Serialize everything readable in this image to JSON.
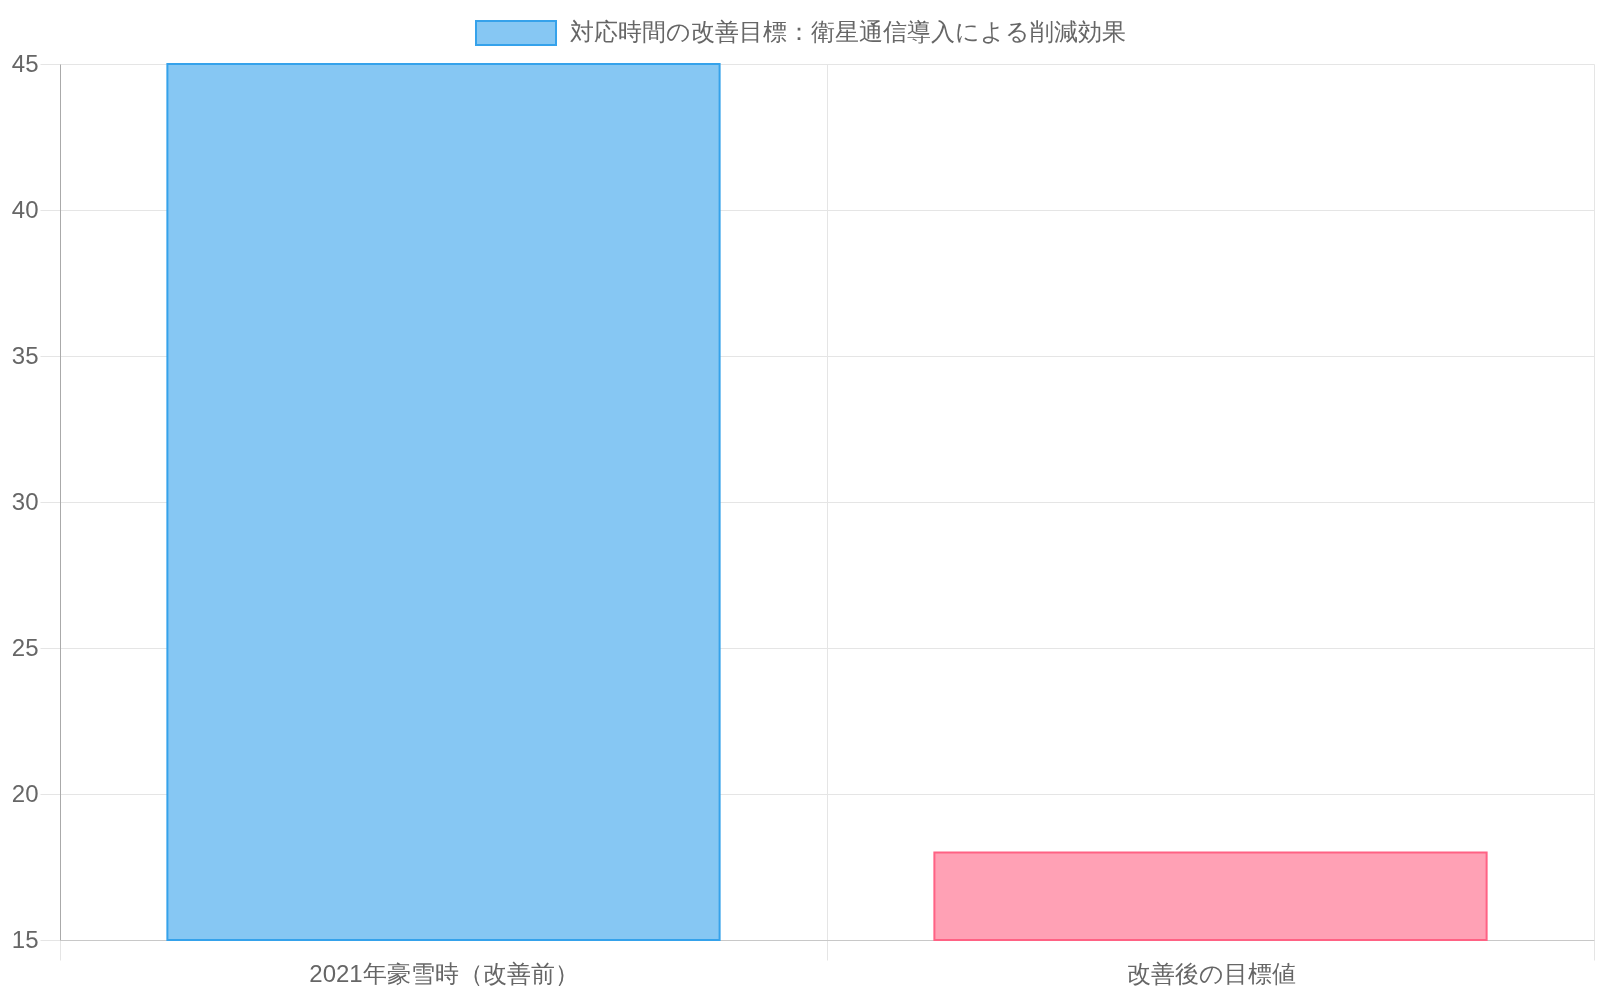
{
  "chart_data": {
    "type": "bar",
    "categories": [
      "2021年豪雪時（改善前）",
      "改善後の目標値"
    ],
    "series": [
      {
        "name": "対応時間の改善目標：衛星通信導入による削減効果",
        "colors": [
          "#86c7f3",
          "#ffa1b5"
        ],
        "values": [
          45,
          18
        ]
      }
    ],
    "ylim": [
      15,
      45
    ],
    "yticks": [
      15,
      20,
      25,
      30,
      35,
      40,
      45
    ],
    "grid": true,
    "legend": "top"
  }
}
